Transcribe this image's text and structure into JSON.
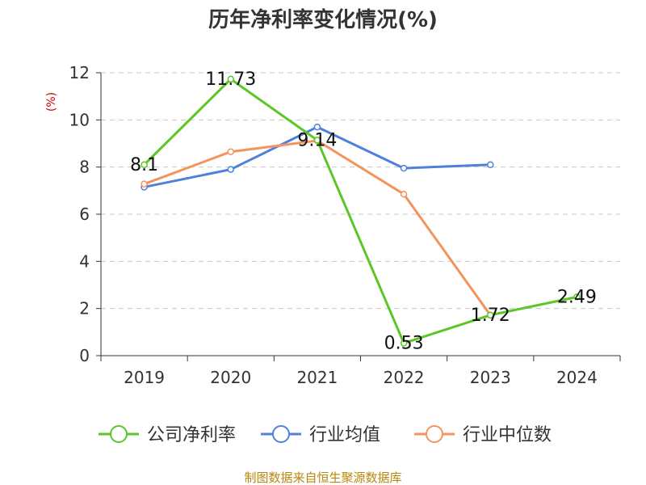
{
  "chart_data": {
    "type": "line",
    "title": "历年净利率变化情况(%)",
    "xlabel": "",
    "ylabel": "(%)",
    "categories": [
      "2019",
      "2020",
      "2021",
      "2022",
      "2023",
      "2024"
    ],
    "ylim": [
      0,
      12
    ],
    "yticks": [
      "0",
      "2",
      "4",
      "6",
      "8",
      "10",
      "12"
    ],
    "grid": true,
    "legend_position": "bottom",
    "series": [
      {
        "name": "公司净利率",
        "color": "#5bc726",
        "values": [
          8.1,
          11.73,
          9.14,
          0.53,
          1.72,
          2.49
        ],
        "labels": [
          "8.1",
          "11.73",
          "9.14",
          "0.53",
          "1.72",
          "2.49"
        ]
      },
      {
        "name": "行业均值",
        "color": "#4f80db",
        "values": [
          7.15,
          7.9,
          9.7,
          7.95,
          8.1,
          null
        ],
        "labels": []
      },
      {
        "name": "行业中位数",
        "color": "#f4935c",
        "values": [
          7.28,
          8.65,
          9.12,
          6.85,
          1.72,
          null
        ],
        "labels": []
      }
    ],
    "source": "制图数据来自恒生聚源数据库"
  }
}
